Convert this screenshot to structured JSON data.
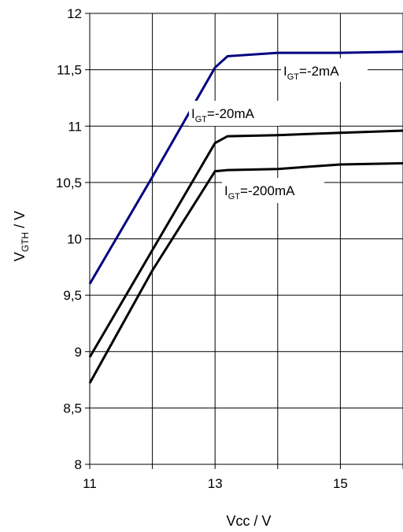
{
  "chart_data": {
    "type": "line",
    "title": "",
    "xlabel": "Vcc / V",
    "ylabel": {
      "main": "V",
      "sub": "GTH",
      "suffix": " / V"
    },
    "xlim": [
      11,
      16
    ],
    "ylim": [
      8,
      12
    ],
    "x_ticks": [
      {
        "value": 11,
        "label": "11"
      },
      {
        "value": 13,
        "label": "13"
      },
      {
        "value": 15,
        "label": "15"
      }
    ],
    "y_ticks": [
      {
        "value": 8,
        "label": "8"
      },
      {
        "value": 8.5,
        "label": "8,5"
      },
      {
        "value": 9,
        "label": "9"
      },
      {
        "value": 9.5,
        "label": "9,5"
      },
      {
        "value": 10,
        "label": "10"
      },
      {
        "value": 10.5,
        "label": "10,5"
      },
      {
        "value": 11,
        "label": "11"
      },
      {
        "value": 11.5,
        "label": "11,5"
      },
      {
        "value": 12,
        "label": "12"
      }
    ],
    "grid": "horizontal and vertical",
    "legend": "none",
    "series": [
      {
        "name": "IGT=-2mA",
        "color": "#000080",
        "points": [
          [
            11,
            9.6
          ],
          [
            12,
            10.55
          ],
          [
            13,
            11.52
          ],
          [
            13.2,
            11.62
          ],
          [
            14,
            11.65
          ],
          [
            15,
            11.65
          ],
          [
            16,
            11.66
          ]
        ]
      },
      {
        "name": "IGT=-20mA",
        "color": "#000000",
        "points": [
          [
            11,
            8.95
          ],
          [
            12,
            9.9
          ],
          [
            13,
            10.85
          ],
          [
            13.2,
            10.91
          ],
          [
            14,
            10.92
          ],
          [
            15,
            10.94
          ],
          [
            16,
            10.96
          ]
        ]
      },
      {
        "name": "IGT=-200mA",
        "color": "#000000",
        "points": [
          [
            11,
            8.72
          ],
          [
            12,
            9.72
          ],
          [
            13,
            10.6
          ],
          [
            13.2,
            10.61
          ],
          [
            14,
            10.62
          ],
          [
            15,
            10.66
          ],
          [
            16,
            10.67
          ]
        ]
      }
    ],
    "annotations": [
      {
        "main": "I",
        "sub": "GT",
        "rest": "=-2mA",
        "series": "IGT=-2mA"
      },
      {
        "main": "I",
        "sub": "GT",
        "rest": "=-20mA",
        "series": "IGT=-20mA"
      },
      {
        "main": "I",
        "sub": "GT",
        "rest": "=-200mA",
        "series": "IGT=-200mA"
      }
    ]
  }
}
